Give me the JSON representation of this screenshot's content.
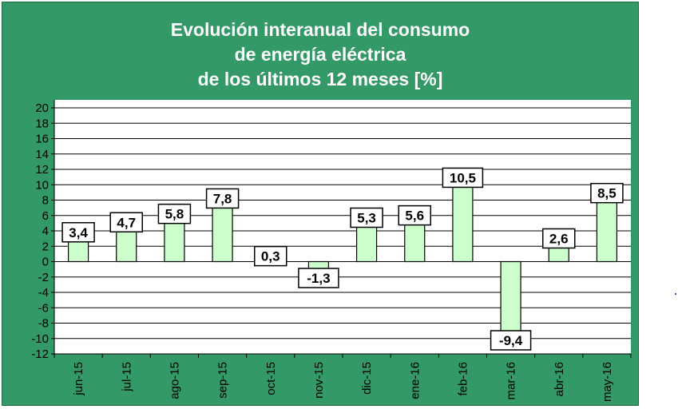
{
  "title": {
    "line1": "Evolución interanual del consumo",
    "line2": "de energía eléctrica",
    "line3": "de los últimos 12 meses [%]"
  },
  "colors": {
    "panel": "#339966",
    "plot_background": "#ffffff",
    "bar_fill": "#ccffcc",
    "bar_stroke": "#000000",
    "label_text": "#000000",
    "axis_text": "#000000"
  },
  "chart_data": {
    "type": "bar",
    "title": "Evolución interanual del consumo de energía eléctrica de los últimos 12 meses [%]",
    "xlabel": "",
    "ylabel": "",
    "categories": [
      "jun-15",
      "jul-15",
      "ago-15",
      "sep-15",
      "oct-15",
      "nov-15",
      "dic-15",
      "ene-16",
      "feb-16",
      "mar-16",
      "abr-16",
      "may-16"
    ],
    "values": [
      3.4,
      4.7,
      5.8,
      7.8,
      0.3,
      -1.3,
      5.3,
      5.6,
      10.5,
      -9.4,
      2.6,
      8.5
    ],
    "data_labels": [
      "3,4",
      "4,7",
      "5,8",
      "7,8",
      "0,3",
      "-1,3",
      "5,3",
      "5,6",
      "10,5",
      "-9,4",
      "2,6",
      "8,5"
    ],
    "ylim": [
      -12,
      20
    ],
    "yticks": [
      20,
      18,
      16,
      14,
      12,
      10,
      8,
      6,
      4,
      2,
      0,
      -2,
      -4,
      -6,
      -8,
      -10,
      -12
    ],
    "grid": true,
    "legend": "none"
  }
}
